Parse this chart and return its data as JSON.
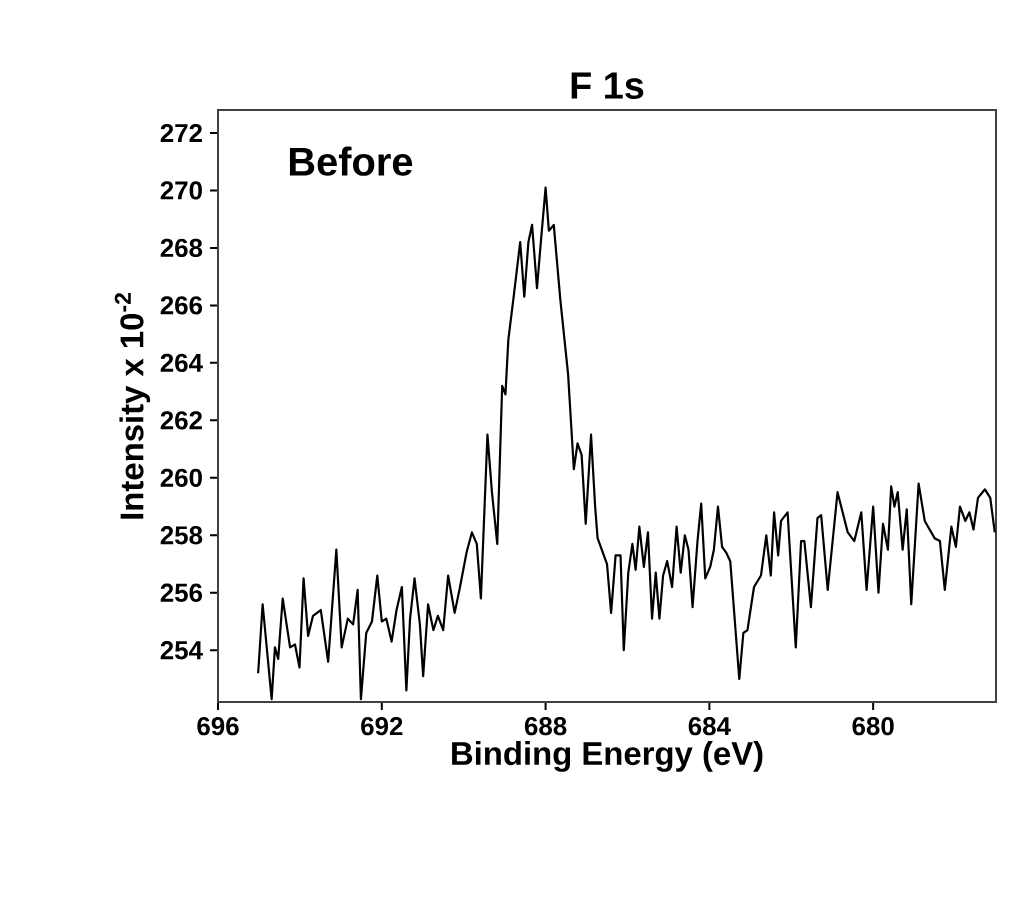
{
  "chart_data": {
    "type": "line",
    "title": "F 1s",
    "xlabel": "Binding Energy (eV)",
    "ylabel": "Intensity x 10$^{-2}$",
    "annotations": [
      "Before"
    ],
    "xlim": [
      696,
      677.0
    ],
    "ylim": [
      252.2,
      272.8
    ],
    "xticks": [
      696,
      692,
      688,
      684,
      680
    ],
    "yticks": [
      254,
      256,
      258,
      260,
      262,
      264,
      266,
      268,
      270,
      272
    ],
    "grid": false,
    "line_style": "solid",
    "series": [
      {
        "color": "#000000",
        "x": [
          695.02,
          694.91,
          694.69,
          694.61,
          694.53,
          694.42,
          694.24,
          694.12,
          694.01,
          693.91,
          693.8,
          693.68,
          693.49,
          693.31,
          693.11,
          692.98,
          692.83,
          692.7,
          692.59,
          692.51,
          692.38,
          692.24,
          692.11,
          692.0,
          691.89,
          691.76,
          691.64,
          691.51,
          691.4,
          691.31,
          691.2,
          691.07,
          690.99,
          690.87,
          690.74,
          690.63,
          690.5,
          690.38,
          690.22,
          690.09,
          689.93,
          689.8,
          689.68,
          689.58,
          689.42,
          689.31,
          689.18,
          689.06,
          688.98,
          688.91,
          688.78,
          688.62,
          688.52,
          688.42,
          688.33,
          688.21,
          688.11,
          688.0,
          687.92,
          687.8,
          687.64,
          687.45,
          687.31,
          687.22,
          687.12,
          687.02,
          686.89,
          686.79,
          686.73,
          686.5,
          686.4,
          686.29,
          686.17,
          686.09,
          685.98,
          685.88,
          685.8,
          685.71,
          685.6,
          685.5,
          685.4,
          685.31,
          685.22,
          685.13,
          685.03,
          684.91,
          684.8,
          684.7,
          684.6,
          684.51,
          684.41,
          684.29,
          684.2,
          684.1,
          683.98,
          683.89,
          683.79,
          683.69,
          683.59,
          683.49,
          683.27,
          683.17,
          683.07,
          682.91,
          682.74,
          682.61,
          682.5,
          682.42,
          682.32,
          682.25,
          682.09,
          681.89,
          681.76,
          681.68,
          681.52,
          681.36,
          681.27,
          681.11,
          680.87,
          680.62,
          680.46,
          680.29,
          680.16,
          680.0,
          679.87,
          679.76,
          679.64,
          679.56,
          679.48,
          679.4,
          679.28,
          679.18,
          679.07,
          678.89,
          678.74,
          678.5,
          678.37,
          678.25,
          678.09,
          677.98,
          677.88,
          677.75,
          677.65,
          677.55,
          677.44,
          677.27,
          677.14,
          677.03
        ],
        "values": [
          253.2,
          255.6,
          252.3,
          254.1,
          253.7,
          255.8,
          254.1,
          254.2,
          253.4,
          256.5,
          254.5,
          255.2,
          255.4,
          253.6,
          257.5,
          254.1,
          255.1,
          254.9,
          256.1,
          252.3,
          254.6,
          255.0,
          256.6,
          255.0,
          255.1,
          254.3,
          255.4,
          256.2,
          252.6,
          255.1,
          256.5,
          254.9,
          253.1,
          255.6,
          254.7,
          255.2,
          254.7,
          256.6,
          255.3,
          256.2,
          257.4,
          258.1,
          257.7,
          255.8,
          261.5,
          259.5,
          257.7,
          263.2,
          262.9,
          264.8,
          266.3,
          268.2,
          266.3,
          268.2,
          268.8,
          266.6,
          268.3,
          270.1,
          268.6,
          268.8,
          266.2,
          263.6,
          260.3,
          261.2,
          260.8,
          258.4,
          261.5,
          259.0,
          257.9,
          257.0,
          255.3,
          257.3,
          257.3,
          254.0,
          256.7,
          257.7,
          256.8,
          258.3,
          256.9,
          258.1,
          255.1,
          256.7,
          255.1,
          256.6,
          257.1,
          256.2,
          258.3,
          256.7,
          258.0,
          257.5,
          255.5,
          257.8,
          259.1,
          256.5,
          256.9,
          257.5,
          259.0,
          257.6,
          257.4,
          257.1,
          253.0,
          254.6,
          254.7,
          256.2,
          256.6,
          258.0,
          256.6,
          258.8,
          257.3,
          258.5,
          258.8,
          254.1,
          257.8,
          257.8,
          255.5,
          258.6,
          258.7,
          256.1,
          259.5,
          258.1,
          257.8,
          258.8,
          256.1,
          259.0,
          256.0,
          258.4,
          257.5,
          259.7,
          259.0,
          259.5,
          257.5,
          258.9,
          255.6,
          259.8,
          258.5,
          257.9,
          257.8,
          256.1,
          258.3,
          257.6,
          259.0,
          258.5,
          258.8,
          258.2,
          259.3,
          259.6,
          259.3,
          258.1
        ]
      }
    ]
  }
}
